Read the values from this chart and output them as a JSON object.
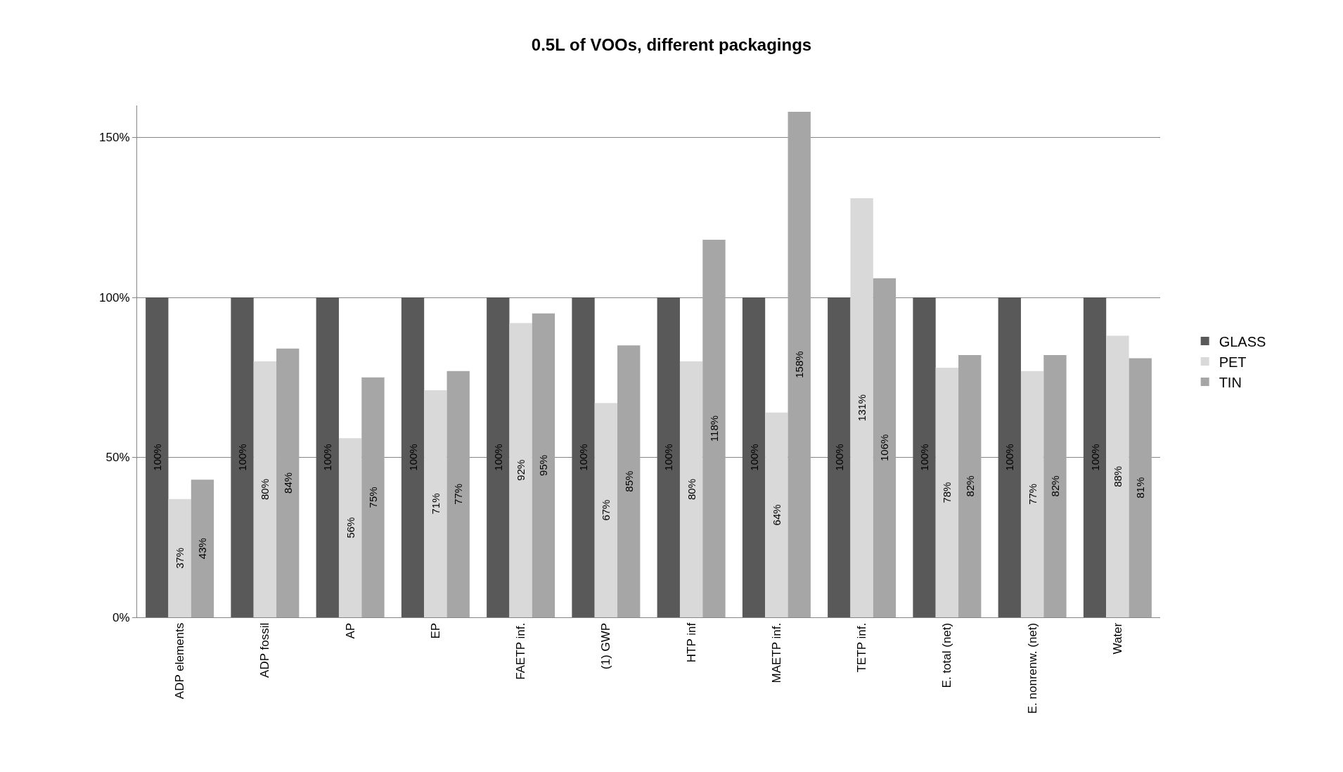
{
  "chart_data": {
    "type": "bar",
    "title": "0.5L of VOOs, different packagings",
    "categories": [
      "ADP elements",
      "ADP fossil",
      "AP",
      "EP",
      "FAETP inf.",
      "(1) GWP",
      "HTP inf",
      "MAETP inf.",
      "TETP inf.",
      "E. total (net)",
      "E. nonrenw. (net)",
      "Water"
    ],
    "series": [
      {
        "name": "GLASS",
        "color": "#595959",
        "values": [
          100,
          100,
          100,
          100,
          100,
          100,
          100,
          100,
          100,
          100,
          100,
          100
        ],
        "value_labels": [
          "100%",
          "100%",
          "100%",
          "100%",
          "100%",
          "100%",
          "100%",
          "100%",
          "100%",
          "100%",
          "100%",
          "100%"
        ]
      },
      {
        "name": "PET",
        "color": "#d9d9d9",
        "values": [
          37,
          80,
          56,
          71,
          92,
          67,
          80,
          64,
          131,
          78,
          77,
          88
        ],
        "value_labels": [
          "37%",
          "80%",
          "56%",
          "71%",
          "92%",
          "67%",
          "80%",
          "64%",
          "131%",
          "78%",
          "77%",
          "88%"
        ]
      },
      {
        "name": "TIN",
        "color": "#a6a6a6",
        "values": [
          43,
          84,
          75,
          77,
          95,
          85,
          118,
          158,
          106,
          82,
          82,
          81
        ],
        "value_labels": [
          "43%",
          "84%",
          "75%",
          "77%",
          "95%",
          "85%",
          "118%",
          "158%",
          "106%",
          "82%",
          "82%",
          "81%"
        ]
      }
    ],
    "ylim": [
      0,
      160
    ],
    "yticks": [
      {
        "value": 0,
        "label": "0%"
      },
      {
        "value": 50,
        "label": "50%"
      },
      {
        "value": 100,
        "label": "100%"
      },
      {
        "value": 150,
        "label": "150%"
      }
    ],
    "grid": "y",
    "legend": "right"
  }
}
